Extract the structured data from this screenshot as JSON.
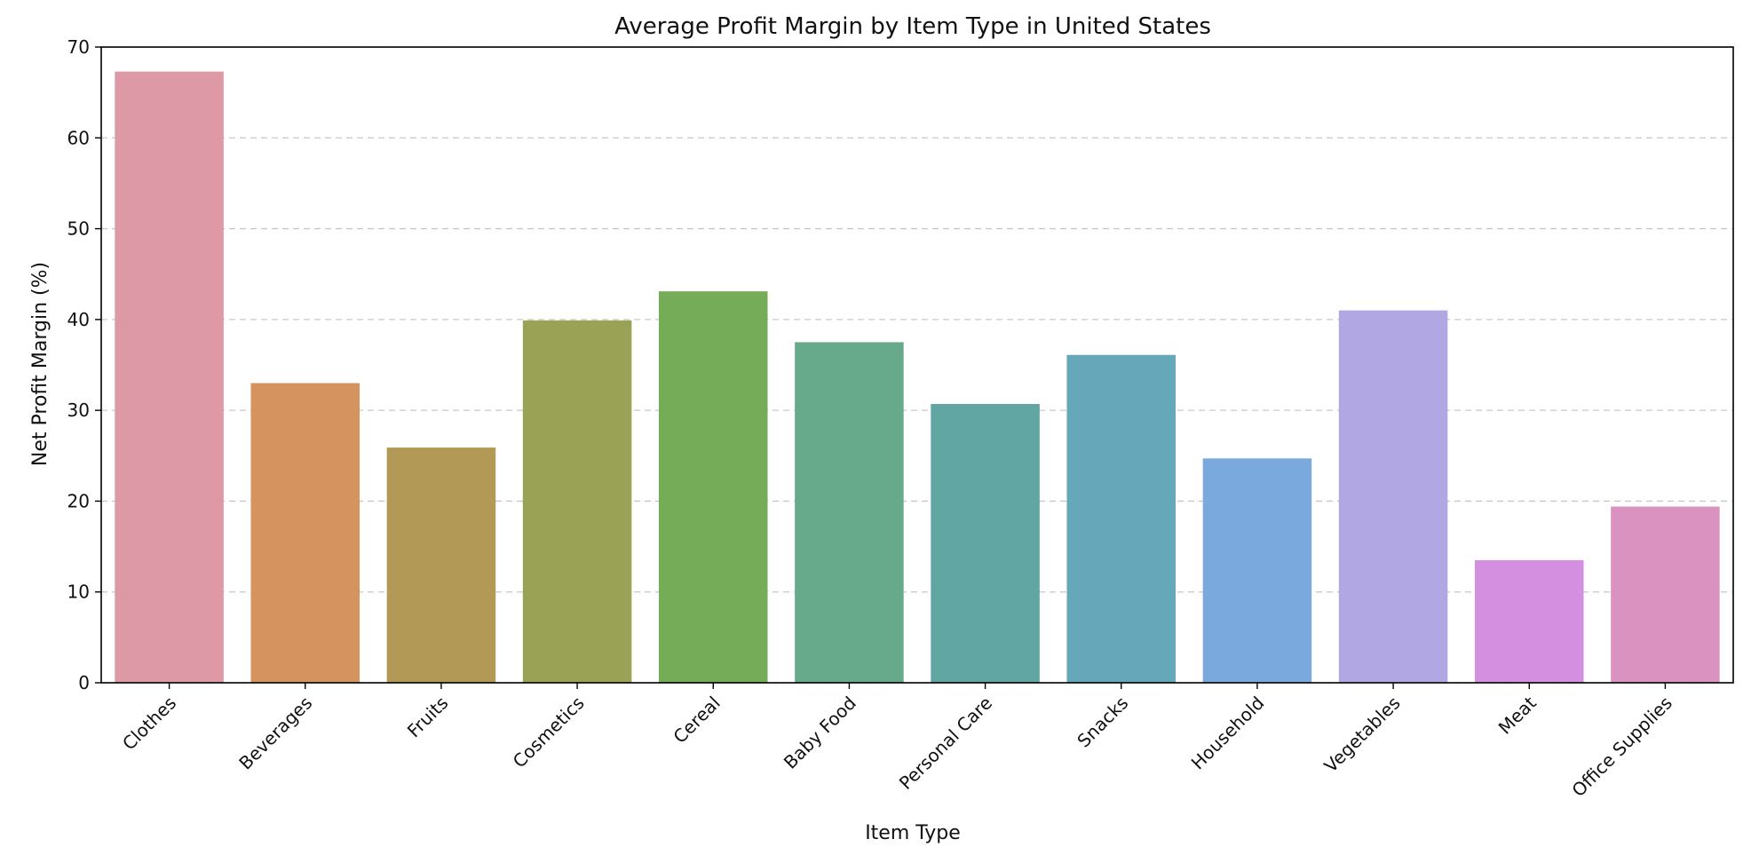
{
  "chart_data": {
    "type": "bar",
    "title": "Average Profit Margin by Item Type in United States",
    "xlabel": "Item Type",
    "ylabel": "Net Profit Margin (%)",
    "ylim": [
      0,
      70
    ],
    "yticks": [
      0,
      10,
      20,
      30,
      40,
      50,
      60,
      70
    ],
    "grid": "y-dashed",
    "categories": [
      "Clothes",
      "Beverages",
      "Fruits",
      "Cosmetics",
      "Cereal",
      "Baby Food",
      "Personal Care",
      "Snacks",
      "Household",
      "Vegetables",
      "Meat",
      "Office Supplies"
    ],
    "values": [
      67.3,
      33.0,
      25.9,
      39.9,
      43.1,
      37.5,
      30.7,
      36.1,
      24.7,
      41.0,
      13.5,
      19.4
    ],
    "colors": [
      "#dd99a5",
      "#d5935f",
      "#b29a56",
      "#9aa355",
      "#75ac57",
      "#67aa8b",
      "#62a6a3",
      "#66a8ba",
      "#7aaadd",
      "#b1a7e3",
      "#d48fe0",
      "#da93c1"
    ]
  }
}
